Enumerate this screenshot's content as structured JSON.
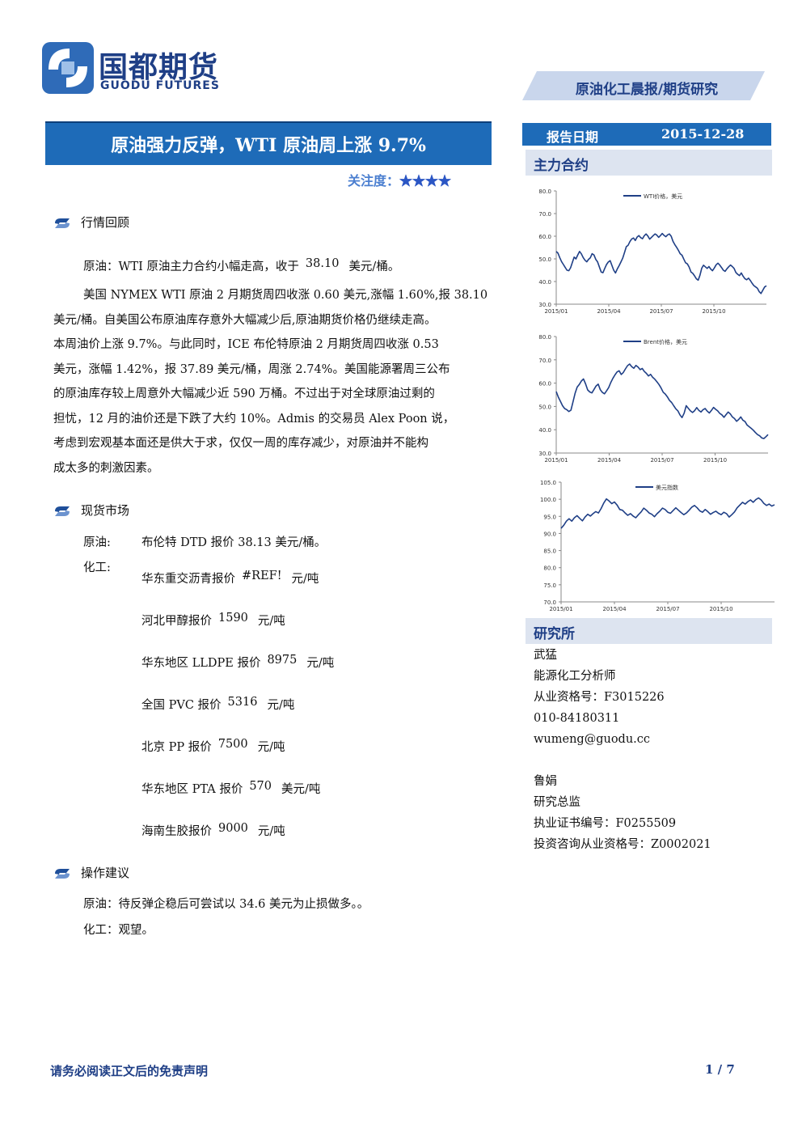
{
  "logo": {
    "name_cn": "国都期货",
    "name_en": "GUODU FUTURES"
  },
  "header_tag": "原油化工晨报/期货研究",
  "title": "原油强力反弹，WTI 原油周上涨 9.7%",
  "attention": {
    "label": "关注度：",
    "stars": "★★★★",
    "rating": 4
  },
  "market_review": {
    "heading": "行情回顾",
    "crude_prefix": "原油：WTI 原油主力合约小幅走高，收于",
    "crude_value": "38.10",
    "crude_suffix": "美元/桶。",
    "paragraph": [
      "美国 NYMEX WTI 原油 2 月期货周四收涨 0.60 美元,涨幅 1.60%,报 38.10",
      "美元/桶。自美国公布原油库存意外大幅减少后,原油期货价格仍继续走高。",
      "本周油价上涨 9.7%。与此同时，ICE 布伦特原油 2 月期货周四收涨 0.53",
      "美元，涨幅 1.42%，报 37.89 美元/桶，周涨 2.74%。美国能源署周三公布",
      "的原油库存较上周意外大幅减少近 590 万桶。不过出于对全球原油过剩的",
      "担忧，12 月的油价还是下跌了大约 10%。Admis 的交易员 Alex Poon 说，",
      "考虑到宏观基本面还是供大于求，仅仅一周的库存减少，对原油并不能构",
      "成太多的刺激因素。"
    ]
  },
  "spot_market": {
    "heading": "现货市场",
    "crude_label": "原油:",
    "crude_text": "布伦特 DTD 报价 38.13 美元/桶。",
    "chem_label": "化工:",
    "items": [
      {
        "name": "华东重交沥青报价",
        "value": "#REF!",
        "unit": "元/吨"
      },
      {
        "name": "河北甲醇报价",
        "value": "1590",
        "unit": "元/吨"
      },
      {
        "name": "华东地区 LLDPE 报价",
        "value": "8975",
        "unit": "元/吨"
      },
      {
        "name": "全国 PVC 报价",
        "value": "5316",
        "unit": "元/吨"
      },
      {
        "name": "北京 PP 报价",
        "value": "7500",
        "unit": "元/吨"
      },
      {
        "name": "华东地区 PTA 报价",
        "value": "570",
        "unit": "美元/吨"
      },
      {
        "name": "海南生胶报价",
        "value": "9000",
        "unit": "元/吨"
      }
    ]
  },
  "advice": {
    "heading": "操作建议",
    "crude": "原油：待反弹企稳后可尝试以 34.6 美元为止损做多。。",
    "chem": "化工：观望。"
  },
  "report_date": {
    "label": "报告日期",
    "value": "2015-12-28"
  },
  "main_contract_label": "主力合约",
  "research_label": "研究所",
  "analysts": [
    {
      "name": "武猛",
      "role": "能源化工分析师",
      "license": "从业资格号：F3015226",
      "phone": "010-84180311",
      "email": "wumeng@guodu.cc"
    },
    {
      "name": "鲁娟",
      "role": "研究总监",
      "license": "执业证书编号：F0255509",
      "license2": "投资咨询从业资格号：Z0002021"
    }
  ],
  "footer": {
    "disclaimer": "请务必阅读正文后的免责声明",
    "page": "1 / 7"
  },
  "colors": {
    "brand_blue": "#1e6bb8",
    "dark_blue": "#1f3f86",
    "line": "#1f3f86",
    "light_panel": "#dde4f0"
  },
  "chart_data": [
    {
      "type": "line",
      "title": "",
      "series": [
        {
          "name": "WTI价格，美元",
          "values": [
            53.3,
            52.5,
            50.5,
            48.7,
            47.5,
            46.2,
            45.0,
            44.8,
            46.1,
            48.5,
            50.8,
            50.0,
            51.8,
            53.3,
            52.2,
            50.6,
            49.4,
            48.7,
            49.8,
            50.5,
            52.3,
            51.7,
            49.8,
            48.7,
            46.5,
            44.2,
            43.9,
            45.8,
            47.5,
            48.6,
            49.2,
            47.1,
            45.0,
            43.8,
            45.6,
            47.0,
            48.6,
            50.3,
            52.7,
            55.4,
            56.0,
            57.6,
            58.8,
            59.2,
            58.1,
            59.6,
            60.3,
            59.4,
            58.9,
            60.2,
            61.0,
            60.1,
            58.7,
            59.5,
            60.3,
            61.0,
            60.5,
            59.5,
            60.3,
            61.2,
            60.4,
            59.8,
            60.6,
            61.0,
            60.0,
            57.8,
            56.3,
            55.1,
            53.8,
            52.3,
            51.6,
            49.9,
            48.3,
            47.8,
            46.4,
            44.2,
            43.6,
            42.5,
            41.2,
            40.6,
            42.8,
            45.9,
            47.2,
            46.5,
            45.8,
            46.6,
            45.5,
            44.8,
            46.0,
            47.4,
            48.1,
            47.3,
            46.2,
            45.0,
            44.5,
            45.6,
            46.5,
            47.3,
            46.6,
            45.8,
            44.0,
            43.2,
            42.6,
            43.8,
            42.4,
            41.3,
            40.8,
            41.5,
            40.5,
            39.3,
            38.2,
            37.6,
            37.0,
            35.5,
            34.7,
            36.2,
            37.6,
            38.1
          ]
        }
      ],
      "x_ticks": [
        "2015/01",
        "2015/04",
        "2015/07",
        "2015/10"
      ],
      "y_ticks": [
        "80.0",
        "70.0",
        "60.0",
        "50.0",
        "40.0",
        "30.0"
      ],
      "ylim": [
        30,
        80
      ],
      "legend": "top-right"
    },
    {
      "type": "line",
      "title": "",
      "series": [
        {
          "name": "Brent价格，美元",
          "values": [
            56.4,
            54.0,
            52.2,
            50.3,
            49.1,
            48.6,
            47.8,
            48.4,
            52.0,
            55.6,
            58.3,
            59.4,
            60.9,
            61.8,
            59.7,
            57.1,
            56.2,
            55.8,
            57.3,
            58.8,
            59.6,
            57.2,
            56.0,
            55.4,
            56.7,
            58.1,
            60.2,
            62.0,
            63.5,
            64.8,
            65.3,
            63.7,
            64.6,
            66.1,
            67.5,
            68.2,
            67.1,
            66.4,
            67.6,
            66.9,
            65.8,
            66.3,
            65.0,
            64.2,
            63.1,
            63.8,
            62.5,
            61.7,
            60.6,
            59.4,
            57.9,
            56.1,
            55.3,
            54.1,
            52.6,
            51.7,
            50.3,
            49.0,
            48.1,
            46.4,
            45.2,
            47.1,
            50.3,
            49.2,
            48.1,
            47.4,
            48.2,
            49.5,
            48.3,
            47.6,
            48.6,
            49.1,
            48.0,
            47.2,
            48.3,
            49.6,
            48.8,
            48.1,
            47.0,
            46.4,
            45.3,
            46.5,
            47.6,
            46.8,
            45.5,
            44.8,
            43.6,
            44.4,
            45.5,
            44.1,
            43.5,
            42.0,
            41.3,
            40.6,
            39.8,
            38.8,
            37.9,
            37.4,
            36.5,
            36.2,
            37.0,
            37.9
          ]
        }
      ],
      "x_ticks": [
        "2015/01",
        "2015/04",
        "2015/07",
        "2015/10"
      ],
      "y_ticks": [
        "80.0",
        "70.0",
        "60.0",
        "50.0",
        "40.0",
        "30.0"
      ],
      "ylim": [
        30,
        80
      ],
      "legend": "top-right"
    },
    {
      "type": "line",
      "title": "",
      "series": [
        {
          "name": "美元指数",
          "values": [
            91.5,
            92.4,
            93.6,
            94.3,
            93.6,
            94.6,
            95.2,
            94.4,
            93.7,
            94.8,
            95.6,
            95.1,
            95.8,
            96.4,
            96.0,
            97.3,
            98.9,
            100.1,
            99.5,
            98.7,
            99.2,
            98.3,
            97.0,
            96.8,
            96.0,
            95.3,
            95.8,
            95.1,
            94.6,
            95.5,
            96.3,
            97.4,
            96.8,
            96.0,
            95.6,
            94.9,
            95.8,
            96.5,
            97.4,
            97.0,
            96.2,
            95.9,
            96.7,
            97.5,
            96.8,
            96.1,
            95.5,
            96.0,
            96.8,
            97.7,
            98.2,
            97.5,
            96.6,
            96.2,
            97.0,
            96.4,
            95.6,
            96.1,
            96.5,
            95.9,
            95.5,
            96.2,
            95.8,
            94.8,
            95.5,
            96.3,
            97.5,
            98.3,
            99.1,
            98.6,
            99.3,
            99.8,
            99.1,
            99.9,
            100.4,
            99.8,
            98.8,
            98.2,
            98.6,
            98.0,
            98.4
          ]
        }
      ],
      "x_ticks": [
        "2015/01",
        "2015/04",
        "2015/07",
        "2015/10"
      ],
      "y_ticks": [
        "105.0",
        "100.0",
        "95.0",
        "90.0",
        "85.0",
        "80.0",
        "75.0",
        "70.0"
      ],
      "ylim": [
        70,
        105
      ],
      "legend": "top-center"
    }
  ]
}
